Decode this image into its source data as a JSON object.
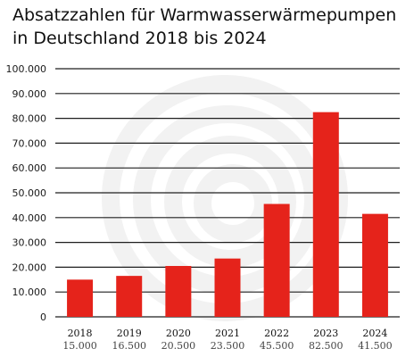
{
  "title_lines": [
    "Absatzzahlen für Warmwasserwärmepumpen",
    "in Deutschland 2018 bis 2024"
  ],
  "colors": {
    "bar": "#e5231b",
    "grid": "#1f1f1f",
    "watermark": "#f2f2f2",
    "text": "#1a1a1a"
  },
  "chart_data": {
    "type": "bar",
    "title": "Absatzzahlen für Warmwasserwärmepumpen in Deutschland 2018 bis 2024",
    "categories": [
      "2018",
      "2019",
      "2020",
      "2021",
      "2022",
      "2023",
      "2024"
    ],
    "values": [
      15000,
      16500,
      20500,
      23500,
      45500,
      82500,
      41500
    ],
    "value_labels": [
      "15.000",
      "16.500",
      "20.500",
      "23.500",
      "45.500",
      "82.500",
      "41.500"
    ],
    "y_ticks": [
      "0",
      "10.000",
      "20.000",
      "30.000",
      "40.000",
      "50.000",
      "60.000",
      "70.000",
      "80.000",
      "90.000",
      "100.000"
    ],
    "ylim": [
      0,
      100000
    ],
    "xlabel": "",
    "ylabel": "",
    "grid": true,
    "legend": "none"
  }
}
